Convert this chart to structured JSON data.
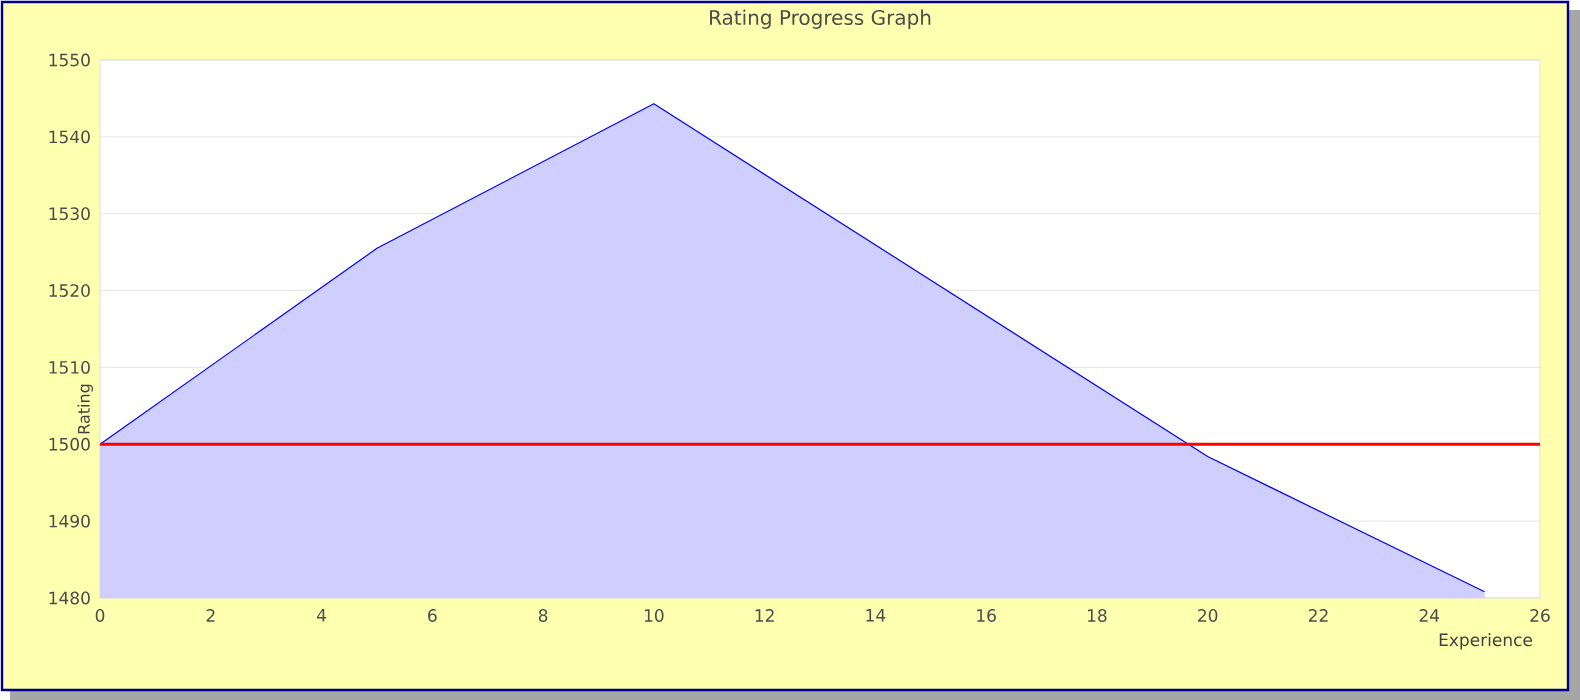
{
  "chart_data": {
    "type": "area",
    "title": "Rating Progress Graph",
    "xlabel": "Experience",
    "ylabel": "Rating",
    "x": [
      0,
      5,
      10,
      20,
      25
    ],
    "series": [
      {
        "color": "#0000ff",
        "values": [
          1500,
          1525.5,
          1544.3,
          1498.4,
          1480.8
        ]
      }
    ],
    "xlim": [
      0,
      26
    ],
    "xticks": [
      0,
      2,
      4,
      6,
      8,
      10,
      12,
      14,
      16,
      18,
      20,
      22,
      24,
      26
    ],
    "ylim": [
      1480,
      1550
    ],
    "yticks": [
      1480,
      1490,
      1500,
      1510,
      1520,
      1530,
      1540,
      1550
    ],
    "grid": "y",
    "ref_lines": [
      {
        "axis": "y",
        "value": 1500,
        "color": "#ff0000"
      }
    ]
  }
}
